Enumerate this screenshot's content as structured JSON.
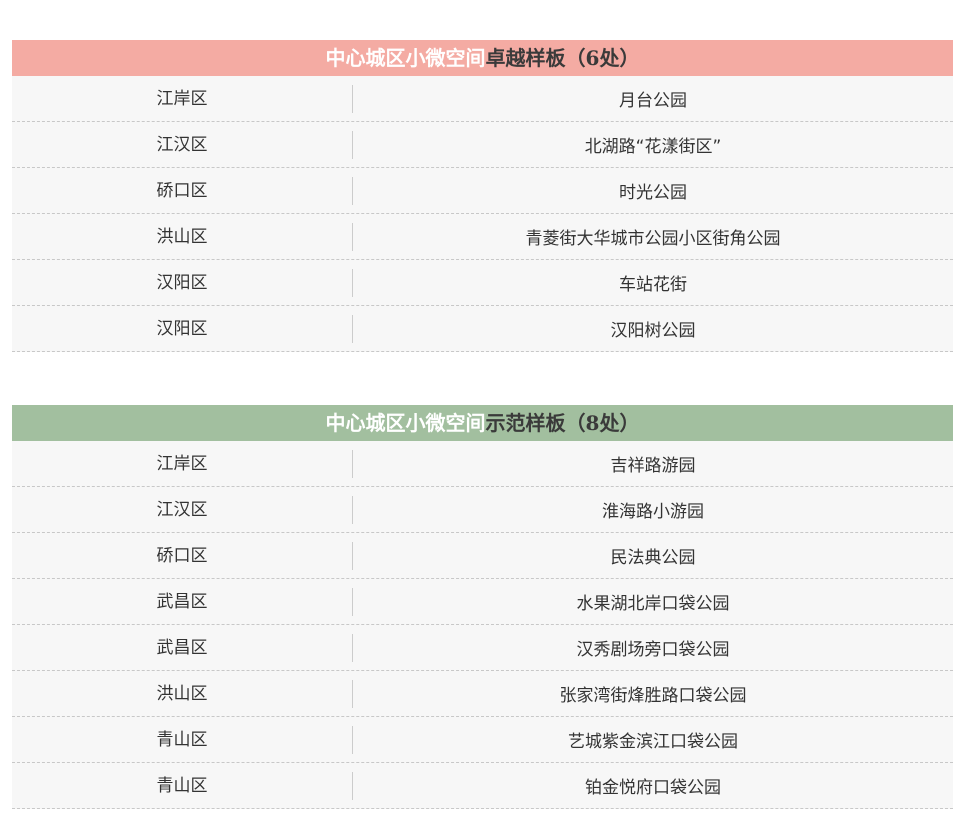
{
  "tables": [
    {
      "title_prefix": "中心城区小微空间",
      "title_suffix": "卓越样板（6处）",
      "header_color": "#f4aba3",
      "rows": [
        [
          "江岸区",
          "月台公园"
        ],
        [
          "江汉区",
          "北湖路“花漾街区”"
        ],
        [
          "硚口区",
          "时光公园"
        ],
        [
          "洪山区",
          "青菱街大华城市公园小区街角公园"
        ],
        [
          "汉阳区",
          "车站花街"
        ],
        [
          "汉阳区",
          "汉阳树公园"
        ]
      ]
    },
    {
      "title_prefix": "中心城区小微空间",
      "title_suffix": "示范样板（8处）",
      "header_color": "#a2bf9f",
      "rows": [
        [
          "江岸区",
          "吉祥路游园"
        ],
        [
          "江汉区",
          "淮海路小游园"
        ],
        [
          "硚口区",
          "民法典公园"
        ],
        [
          "武昌区",
          "水果湖北岸口袋公园"
        ],
        [
          "武昌区",
          "汉秀剧场旁口袋公园"
        ],
        [
          "洪山区",
          "张家湾街烽胜路口袋公园"
        ],
        [
          "青山区",
          "艺城紫金滨江口袋公园"
        ],
        [
          "青山区",
          "铂金悦府口袋公园"
        ]
      ]
    }
  ]
}
